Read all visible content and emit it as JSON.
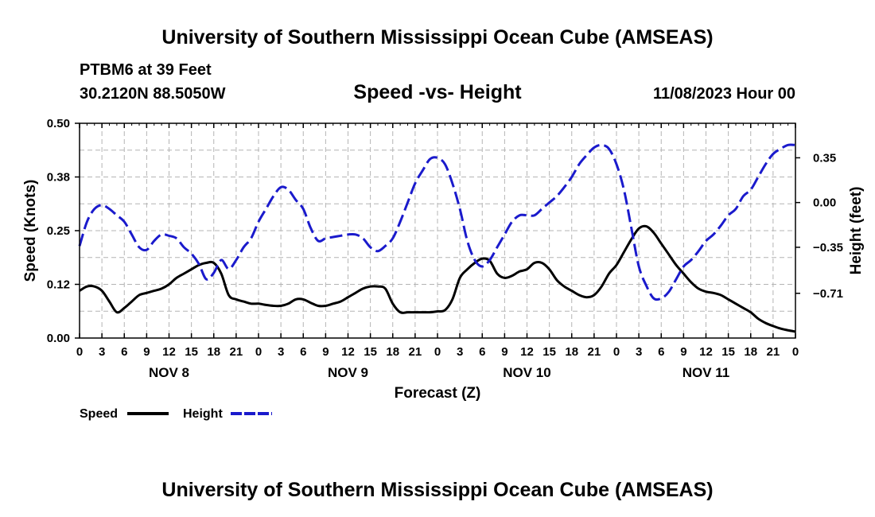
{
  "page": {
    "title": "University of Southern Mississippi Ocean Cube (AMSEAS)",
    "footer_title": "University of Southern Mississippi Ocean Cube (AMSEAS)",
    "station": "PTBM6 at 39 Feet",
    "location": "30.2120N  88.5050W",
    "chart_title": "Speed -vs- Height",
    "run_time": "11/08/2023 Hour 00"
  },
  "colors": {
    "speed": "#000000",
    "height": "#1a1acc",
    "grid": "#b4b4b4"
  },
  "chart_data": {
    "type": "line",
    "title": "Speed -vs- Height",
    "xlabel": "Forecast (Z)",
    "ylabel": "Speed (Knots)",
    "y2label": "Height (feet)",
    "grid": true,
    "legend_position": "bottom-left",
    "x_range_hours": [
      0,
      96
    ],
    "x_tick_step_hours": 3,
    "x_tick_labels": [
      "0",
      "3",
      "6",
      "9",
      "12",
      "15",
      "18",
      "21",
      "0",
      "3",
      "6",
      "9",
      "12",
      "15",
      "18",
      "21",
      "0",
      "3",
      "6",
      "9",
      "12",
      "15",
      "18",
      "21",
      "0",
      "3",
      "6",
      "9",
      "12",
      "15",
      "18",
      "21",
      "0"
    ],
    "day_labels": [
      {
        "label": "NOV 8",
        "hour": 12
      },
      {
        "label": "NOV 9",
        "hour": 36
      },
      {
        "label": "NOV 10",
        "hour": 60
      },
      {
        "label": "NOV 11",
        "hour": 84
      }
    ],
    "ylim": [
      0,
      0.5
    ],
    "y_ticks": [
      {
        "value": 0.0,
        "label": "0.00"
      },
      {
        "value": 0.125,
        "label": "0.12"
      },
      {
        "value": 0.25,
        "label": "0.25"
      },
      {
        "value": 0.375,
        "label": "0.38"
      },
      {
        "value": 0.5,
        "label": "0.50"
      }
    ],
    "y2lim": [
      -1.06,
      0.62
    ],
    "y2_ticks": [
      {
        "value": 0.35,
        "label": "0.35"
      },
      {
        "value": 0.0,
        "label": "0.00"
      },
      {
        "value": -0.35,
        "label": "−0.35"
      },
      {
        "value": -0.71,
        "label": "−0.71"
      }
    ],
    "series": [
      {
        "name": "Speed",
        "axis": "left",
        "style": "solid",
        "x": [
          0,
          1,
          2,
          3,
          4,
          5,
          6,
          7,
          8,
          9,
          10,
          11,
          12,
          13,
          14,
          15,
          16,
          17,
          18,
          19,
          20,
          21,
          22,
          23,
          24,
          25,
          26,
          27,
          28,
          29,
          30,
          31,
          32,
          33,
          34,
          35,
          36,
          37,
          38,
          39,
          40,
          41,
          42,
          43,
          44,
          45,
          46,
          47,
          48,
          49,
          50,
          51,
          52,
          53,
          54,
          55,
          56,
          57,
          58,
          59,
          60,
          61,
          62,
          63,
          64,
          65,
          66,
          67,
          68,
          69,
          70,
          71,
          72,
          73,
          74,
          75,
          76,
          77,
          78,
          79,
          80,
          81,
          82,
          83,
          84,
          85,
          86,
          87,
          88,
          89,
          90,
          91,
          92,
          93,
          94,
          95,
          96
        ],
        "values": [
          0.11,
          0.12,
          0.12,
          0.11,
          0.085,
          0.06,
          0.07,
          0.085,
          0.1,
          0.105,
          0.11,
          0.115,
          0.125,
          0.14,
          0.15,
          0.16,
          0.17,
          0.175,
          0.175,
          0.15,
          0.1,
          0.09,
          0.085,
          0.08,
          0.08,
          0.077,
          0.075,
          0.075,
          0.08,
          0.09,
          0.09,
          0.082,
          0.075,
          0.075,
          0.08,
          0.085,
          0.095,
          0.105,
          0.115,
          0.12,
          0.12,
          0.115,
          0.08,
          0.06,
          0.06,
          0.06,
          0.06,
          0.06,
          0.062,
          0.065,
          0.09,
          0.14,
          0.16,
          0.175,
          0.185,
          0.18,
          0.15,
          0.14,
          0.145,
          0.155,
          0.16,
          0.175,
          0.175,
          0.16,
          0.135,
          0.12,
          0.11,
          0.1,
          0.095,
          0.1,
          0.12,
          0.15,
          0.17,
          0.2,
          0.23,
          0.255,
          0.26,
          0.245,
          0.22,
          0.195,
          0.17,
          0.15,
          0.13,
          0.115,
          0.108,
          0.105,
          0.1,
          0.09,
          0.08,
          0.07,
          0.06,
          0.045,
          0.035,
          0.028,
          0.022,
          0.018,
          0.015
        ]
      },
      {
        "name": "Height",
        "axis": "right",
        "style": "dashed",
        "x": [
          0,
          1,
          2,
          3,
          4,
          5,
          6,
          7,
          8,
          9,
          10,
          11,
          12,
          13,
          14,
          15,
          16,
          17,
          18,
          19,
          20,
          21,
          22,
          23,
          24,
          25,
          26,
          27,
          28,
          29,
          30,
          31,
          32,
          33,
          34,
          35,
          36,
          37,
          38,
          39,
          40,
          41,
          42,
          43,
          44,
          45,
          46,
          47,
          48,
          49,
          50,
          51,
          52,
          53,
          54,
          55,
          56,
          57,
          58,
          59,
          60,
          61,
          62,
          63,
          64,
          65,
          66,
          67,
          68,
          69,
          70,
          71,
          72,
          73,
          74,
          75,
          76,
          77,
          78,
          79,
          80,
          81,
          82,
          83,
          84,
          85,
          86,
          87,
          88,
          89,
          90,
          91,
          92,
          93,
          94,
          95,
          96
        ],
        "values": [
          -0.34,
          -0.15,
          -0.05,
          -0.02,
          -0.05,
          -0.1,
          -0.15,
          -0.25,
          -0.35,
          -0.37,
          -0.3,
          -0.25,
          -0.26,
          -0.28,
          -0.35,
          -0.4,
          -0.48,
          -0.6,
          -0.55,
          -0.45,
          -0.52,
          -0.45,
          -0.35,
          -0.28,
          -0.15,
          -0.05,
          0.05,
          0.12,
          0.1,
          0.02,
          -0.05,
          -0.2,
          -0.3,
          -0.28,
          -0.27,
          -0.26,
          -0.25,
          -0.25,
          -0.28,
          -0.35,
          -0.38,
          -0.34,
          -0.28,
          -0.15,
          0.0,
          0.15,
          0.25,
          0.34,
          0.35,
          0.3,
          0.15,
          -0.05,
          -0.3,
          -0.45,
          -0.5,
          -0.45,
          -0.35,
          -0.25,
          -0.15,
          -0.1,
          -0.1,
          -0.1,
          -0.05,
          0.0,
          0.05,
          0.12,
          0.2,
          0.3,
          0.37,
          0.43,
          0.45,
          0.42,
          0.3,
          0.1,
          -0.2,
          -0.5,
          -0.65,
          -0.75,
          -0.75,
          -0.7,
          -0.6,
          -0.5,
          -0.45,
          -0.38,
          -0.3,
          -0.25,
          -0.18,
          -0.1,
          -0.05,
          0.05,
          0.1,
          0.2,
          0.3,
          0.38,
          0.42,
          0.45,
          0.45
        ]
      }
    ],
    "legend": [
      {
        "name": "Speed",
        "style": "solid"
      },
      {
        "name": "Height",
        "style": "dashed"
      }
    ]
  }
}
